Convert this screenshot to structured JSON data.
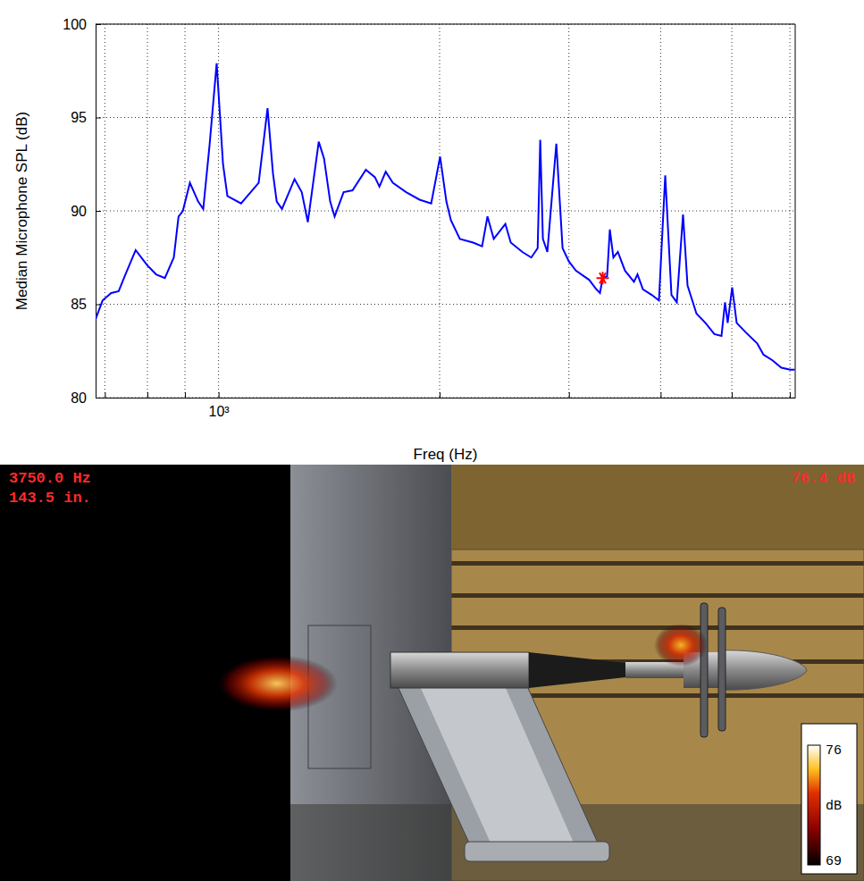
{
  "chart_data": [
    {
      "type": "line",
      "xlabel": "Freq (Hz)",
      "ylabel": "Median Microphone SPL (dB)",
      "log": "x",
      "grid": true,
      "xlim": [
        680,
        6100
      ],
      "ylim": [
        80,
        100
      ],
      "xticks": [
        {
          "value": 700,
          "label": null
        },
        {
          "value": 800,
          "label": null
        },
        {
          "value": 900,
          "label": null
        },
        {
          "value": 1000,
          "label": "10³"
        },
        {
          "value": 2000,
          "label": null
        },
        {
          "value": 3000,
          "label": null
        },
        {
          "value": 4000,
          "label": null
        },
        {
          "value": 5000,
          "label": null
        },
        {
          "value": 6000,
          "label": null
        }
      ],
      "yticks": [
        80,
        85,
        90,
        95,
        100
      ],
      "series": [
        {
          "color": "#0000ff",
          "line_style": "solid",
          "x": [
            680,
            695,
            714,
            731,
            745,
            771,
            799,
            822,
            845,
            869,
            882,
            894,
            914,
            938,
            953,
            972,
            994,
            1014,
            1028,
            1073,
            1134,
            1166,
            1186,
            1200,
            1220,
            1269,
            1298,
            1323,
            1369,
            1392,
            1419,
            1439,
            1480,
            1522,
            1587,
            1633,
            1656,
            1689,
            1727,
            1801,
            1878,
            1948,
            2003,
            2043,
            2072,
            2131,
            2222,
            2285,
            2324,
            2370,
            2458,
            2500,
            2593,
            2666,
            2720,
            2742,
            2765,
            2804,
            2884,
            2941,
            2999,
            3066,
            3198,
            3270,
            3307,
            3335,
            3382,
            3411,
            3449,
            3498,
            3577,
            3679,
            3720,
            3784,
            3890,
            3979,
            4058,
            4138,
            4208,
            4291,
            4352,
            4476,
            4603,
            4734,
            4841,
            4895,
            4936,
            5006,
            5077,
            5222,
            5415,
            5523,
            5679,
            5840,
            6006,
            6091
          ],
          "values": [
            84.2,
            85.2,
            85.6,
            85.7,
            86.5,
            87.9,
            87.1,
            86.6,
            86.4,
            87.5,
            89.7,
            90.0,
            91.5,
            90.5,
            90.1,
            93.5,
            97.9,
            92.5,
            90.8,
            90.4,
            91.5,
            95.5,
            92.0,
            90.5,
            90.1,
            91.7,
            91.0,
            89.4,
            93.7,
            92.8,
            90.5,
            89.7,
            91.0,
            91.1,
            92.2,
            91.8,
            91.3,
            92.1,
            91.5,
            91.0,
            90.6,
            90.4,
            92.9,
            90.5,
            89.5,
            88.5,
            88.3,
            88.1,
            89.7,
            88.5,
            89.3,
            88.3,
            87.8,
            87.5,
            88.0,
            93.8,
            88.5,
            87.8,
            93.6,
            88.0,
            87.3,
            86.8,
            86.3,
            85.8,
            85.6,
            86.4,
            86.5,
            89.0,
            87.5,
            87.8,
            86.8,
            86.2,
            86.6,
            85.8,
            85.5,
            85.2,
            91.9,
            85.5,
            85.1,
            89.8,
            86.0,
            84.5,
            84.0,
            83.4,
            83.3,
            85.1,
            84.0,
            85.9,
            84.0,
            83.5,
            82.9,
            82.3,
            82.0,
            81.6,
            81.5,
            81.5
          ]
        },
        {
          "type": "scatter",
          "marker": "star",
          "color": "#ff0000",
          "x": [
            3335
          ],
          "values": [
            86.4
          ]
        }
      ]
    },
    {
      "type": "acoustic_map",
      "annotations": [
        {
          "text": "3750.0 Hz"
        },
        {
          "text": "143.5 in."
        },
        {
          "text": "76.4 dB"
        }
      ],
      "sources": [
        {
          "level": 75.0
        },
        {
          "level": 74.5
        }
      ],
      "colorbar": {
        "range": [
          69,
          76
        ],
        "ticks": [
          69,
          76
        ],
        "label": "dB"
      }
    }
  ]
}
